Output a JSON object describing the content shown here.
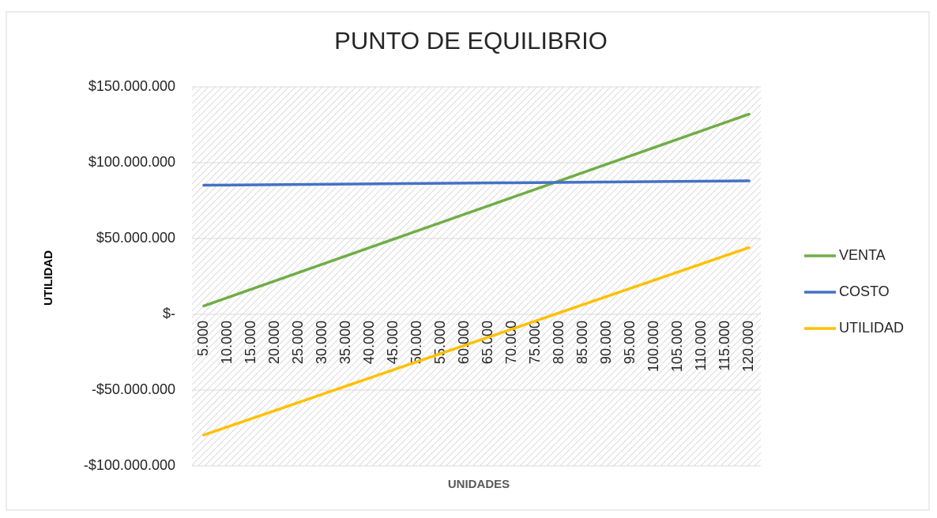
{
  "chart_data": {
    "type": "line",
    "title": "PUNTO DE EQUILIBRIO",
    "x_label": "UNIDADES",
    "y_label": "UTILIDAD",
    "categories": [
      "5.000",
      "10.000",
      "15.000",
      "20.000",
      "25.000",
      "30.000",
      "35.000",
      "40.000",
      "45.000",
      "50.000",
      "55.000",
      "60.000",
      "65.000",
      "70.000",
      "75.000",
      "80.000",
      "85.000",
      "90.000",
      "95.000",
      "100.000",
      "105.000",
      "110.000",
      "115.000",
      "120.000"
    ],
    "series": [
      {
        "name": "VENTA",
        "color": "#70ad47",
        "values": [
          5500000,
          11000000,
          16500000,
          22000000,
          27500000,
          33000000,
          38500000,
          44000000,
          49500000,
          55000000,
          60500000,
          66000000,
          71500000,
          77000000,
          82500000,
          88000000,
          93500000,
          99000000,
          104500000,
          110000000,
          115500000,
          121000000,
          126500000,
          132000000
        ]
      },
      {
        "name": "COSTO",
        "color": "#4472c4",
        "values": [
          85125000,
          85250000,
          85375000,
          85500000,
          85625000,
          85750000,
          85875000,
          86000000,
          86125000,
          86250000,
          86375000,
          86500000,
          86625000,
          86750000,
          86875000,
          87000000,
          87125000,
          87250000,
          87375000,
          87500000,
          87625000,
          87750000,
          87875000,
          88000000
        ]
      },
      {
        "name": "UTILIDAD",
        "color": "#ffc000",
        "values": [
          -79625000,
          -74250000,
          -68875000,
          -63500000,
          -58125000,
          -52750000,
          -47375000,
          -42000000,
          -36625000,
          -31250000,
          -25875000,
          -20500000,
          -15125000,
          -9750000,
          -4375000,
          1000000,
          6375000,
          11750000,
          17125000,
          22500000,
          27875000,
          33250000,
          38625000,
          44000000
        ]
      }
    ],
    "ylim": [
      -100000000,
      150000000
    ],
    "yticks": [
      {
        "value": -100000000,
        "label": "-$100.000.000"
      },
      {
        "value": -50000000,
        "label": "-$50.000.000"
      },
      {
        "value": 0,
        "label": "$-"
      },
      {
        "value": 50000000,
        "label": "$50.000.000"
      },
      {
        "value": 100000000,
        "label": "$100.000.000"
      },
      {
        "value": 150000000,
        "label": "$150.000.000"
      }
    ],
    "grid": true,
    "legend": "right"
  }
}
